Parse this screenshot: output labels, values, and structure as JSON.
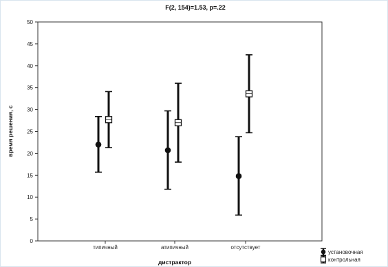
{
  "chart_data": {
    "type": "errorbar",
    "title": "F(2, 154)=1.53, p=.22",
    "xlabel": "дистрактор",
    "ylabel": "время решения, с",
    "categories": [
      "типичный",
      "атипичный",
      "отсутствует"
    ],
    "ylim": [
      0,
      50
    ],
    "yticks": [
      0,
      5,
      10,
      15,
      20,
      25,
      30,
      35,
      40,
      45,
      50
    ],
    "grid": false,
    "legend_position": "bottom-right",
    "series": [
      {
        "name": "установочная",
        "marker": "filled-circle",
        "color": "#111111",
        "values": [
          22.0,
          20.7,
          14.8
        ],
        "lower": [
          15.7,
          11.8,
          5.9
        ],
        "upper": [
          28.4,
          29.7,
          23.8
        ]
      },
      {
        "name": "контрольная",
        "marker": "open-square",
        "color": "#111111",
        "values": [
          27.7,
          27.0,
          33.6
        ],
        "lower": [
          21.3,
          18.0,
          24.7
        ],
        "upper": [
          34.1,
          36.0,
          42.5
        ]
      }
    ]
  }
}
